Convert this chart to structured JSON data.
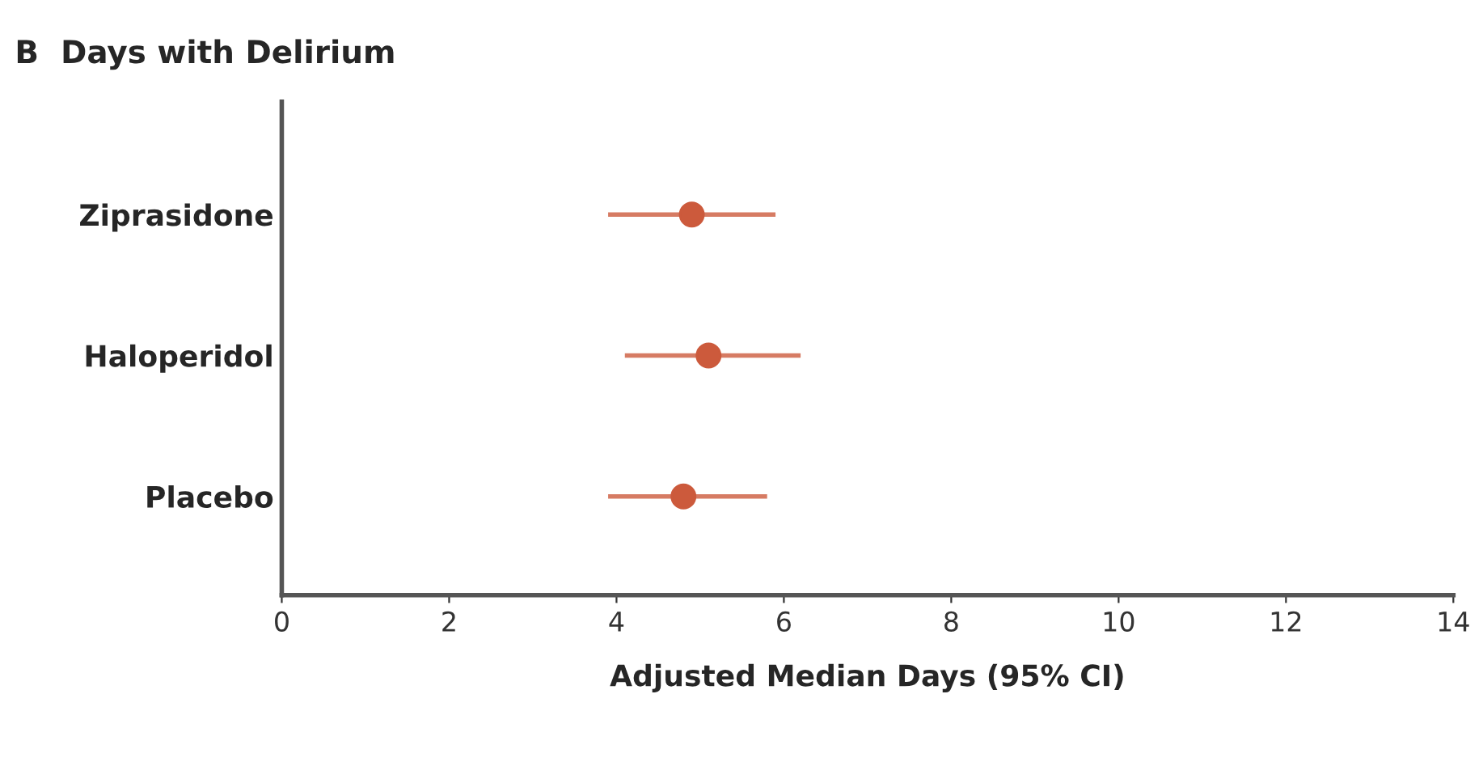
{
  "chart_data": {
    "type": "scatter",
    "title": "B  Days with Delirium",
    "xlabel": "Adjusted Median Days (95% CI)",
    "categories": [
      "Ziprasidone",
      "Haloperidol",
      "Placebo"
    ],
    "orientation": "horizontal",
    "series": [
      {
        "color": "#cc5a3c",
        "values": [
          4.9,
          5.1,
          4.8
        ],
        "errors": [
          [
            3.9,
            5.9
          ],
          [
            4.1,
            6.2
          ],
          [
            3.9,
            5.8
          ]
        ]
      }
    ],
    "xlim": [
      0,
      14
    ],
    "xticks": [
      0,
      2,
      4,
      6,
      8,
      10,
      12,
      14
    ],
    "marker": "circle",
    "grid": false,
    "legend": false
  }
}
